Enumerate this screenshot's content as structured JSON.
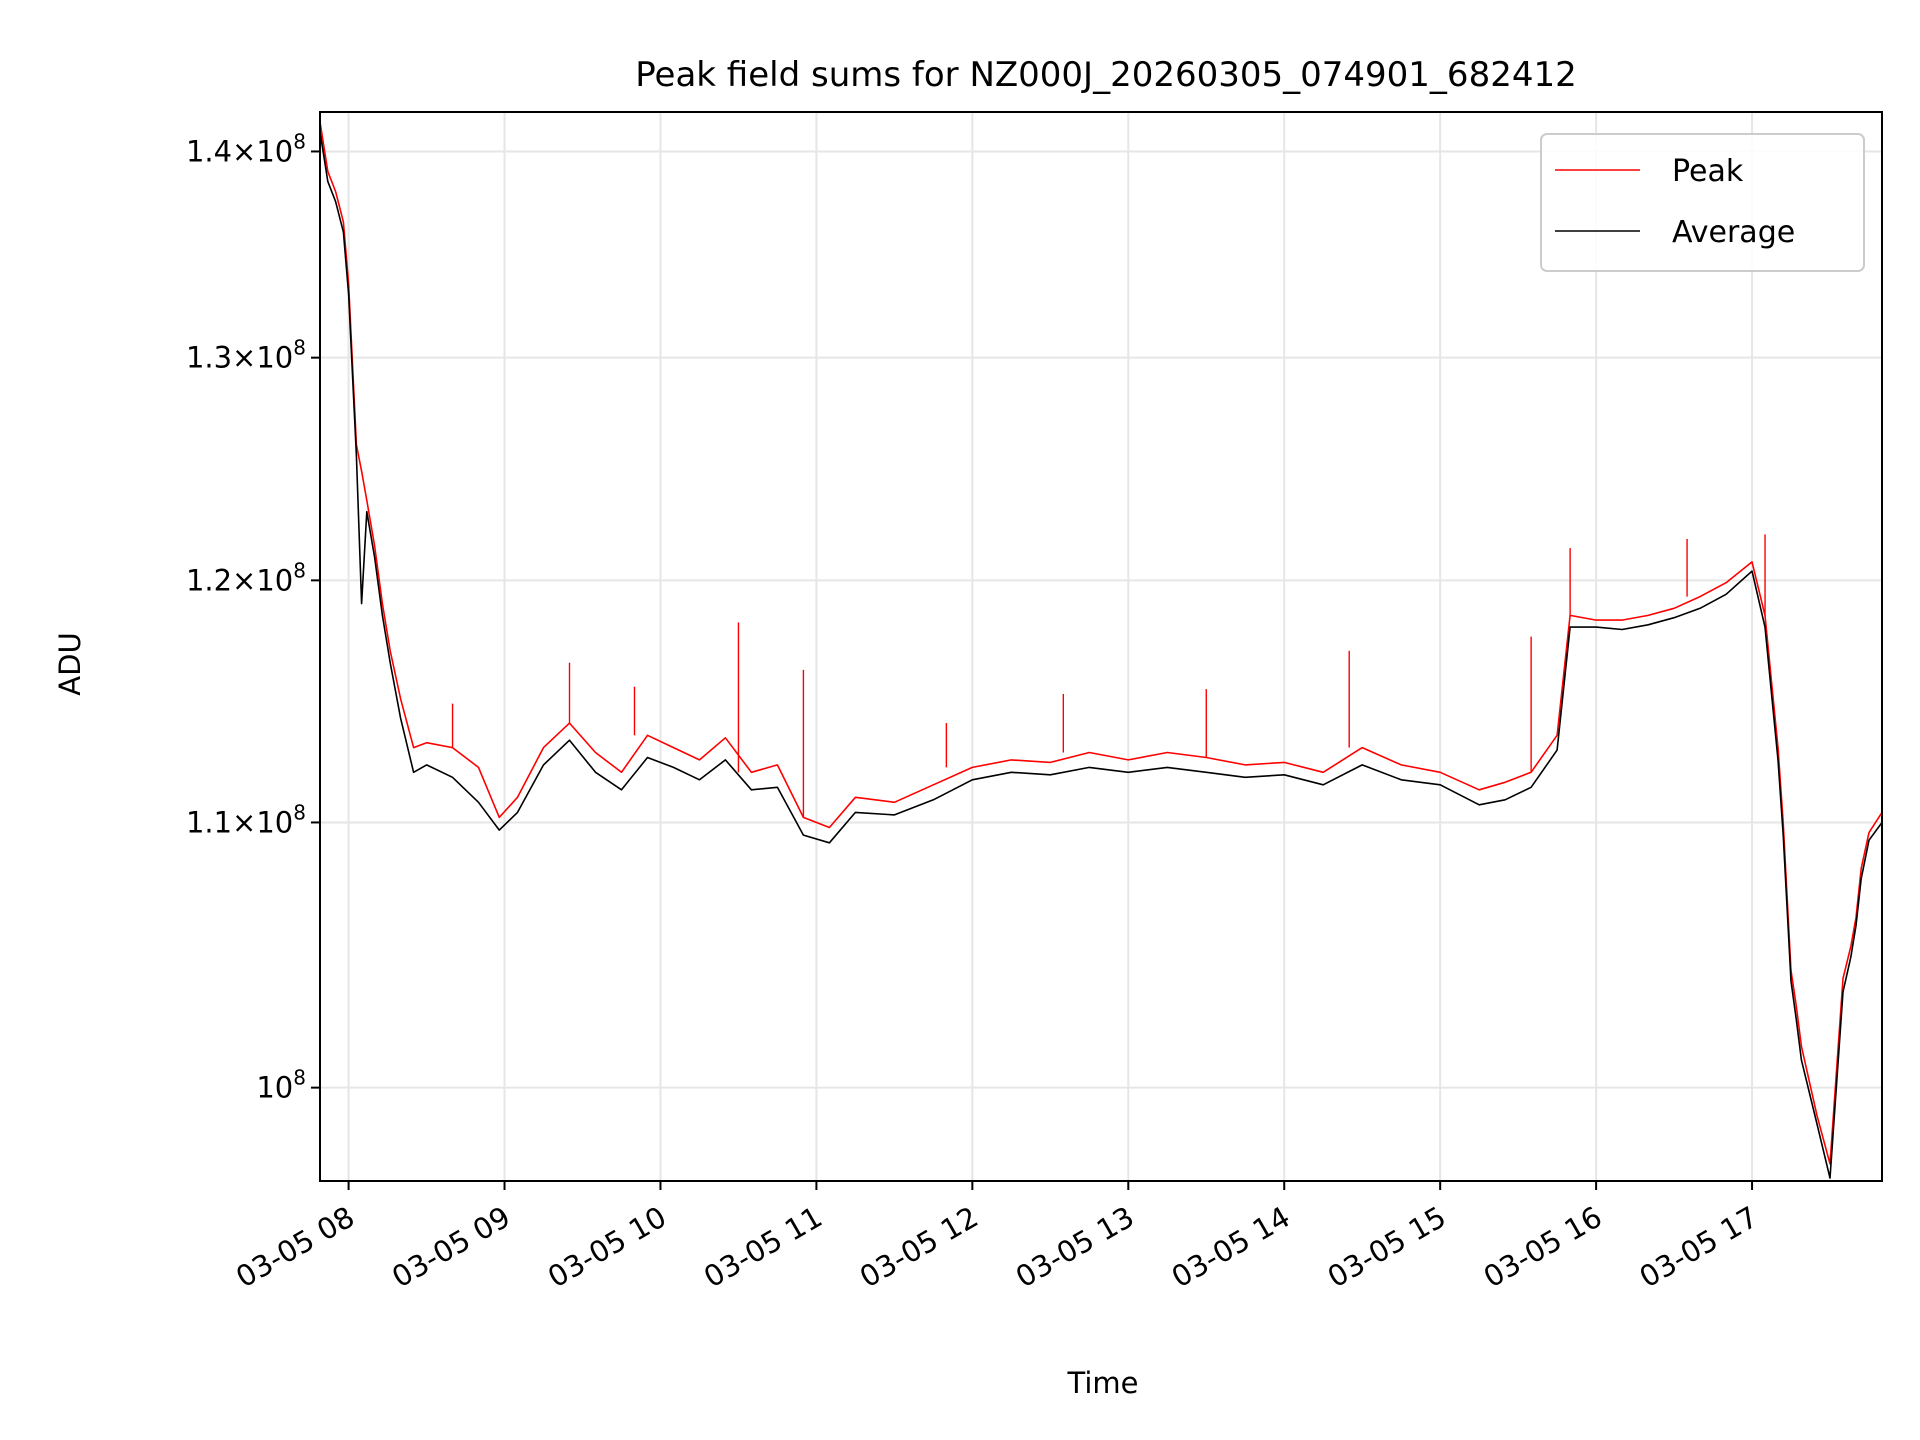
{
  "chart_data": {
    "type": "line",
    "title": "Peak field sums for NZ000J_20260305_074901_682412",
    "xlabel": "Time",
    "ylabel": "ADU",
    "y_scale": "log",
    "ylim": [
      96700000,
      142000000
    ],
    "xlim": [
      "03-05 07:49",
      "03-05 17:50"
    ],
    "grid": true,
    "legend_position": "top-right",
    "x_tick_labels": [
      "03-05 08",
      "03-05 09",
      "03-05 10",
      "03-05 11",
      "03-05 12",
      "03-05 13",
      "03-05 14",
      "03-05 15",
      "03-05 16",
      "03-05 17"
    ],
    "x_ticks": [
      "03-05 08:00",
      "03-05 09:00",
      "03-05 10:00",
      "03-05 11:00",
      "03-05 12:00",
      "03-05 13:00",
      "03-05 14:00",
      "03-05 15:00",
      "03-05 16:00",
      "03-05 17:00"
    ],
    "y_ticks": [
      {
        "value": 100000000,
        "mantissa": "",
        "exponent": "8"
      },
      {
        "value": 110000000,
        "mantissa": "1.1",
        "exponent": "8"
      },
      {
        "value": 120000000,
        "mantissa": "1.2",
        "exponent": "8"
      },
      {
        "value": 130000000,
        "mantissa": "1.3",
        "exponent": "8"
      },
      {
        "value": 140000000,
        "mantissa": "1.4",
        "exponent": "8"
      }
    ],
    "series": [
      {
        "name": "Peak",
        "color": "#ff0000",
        "x": [
          "03-05 07:49",
          "03-05 07:52",
          "03-05 07:55",
          "03-05 07:58",
          "03-05 08:00",
          "03-05 08:03",
          "03-05 08:05",
          "03-05 08:07",
          "03-05 08:10",
          "03-05 08:13",
          "03-05 08:16",
          "03-05 08:20",
          "03-05 08:25",
          "03-05 08:30",
          "03-05 08:40",
          "03-05 08:50",
          "03-05 08:58",
          "03-05 09:05",
          "03-05 09:15",
          "03-05 09:25",
          "03-05 09:35",
          "03-05 09:45",
          "03-05 09:55",
          "03-05 10:05",
          "03-05 10:15",
          "03-05 10:25",
          "03-05 10:35",
          "03-05 10:45",
          "03-05 10:55",
          "03-05 11:05",
          "03-05 11:15",
          "03-05 11:30",
          "03-05 11:45",
          "03-05 12:00",
          "03-05 12:15",
          "03-05 12:30",
          "03-05 12:45",
          "03-05 13:00",
          "03-05 13:15",
          "03-05 13:30",
          "03-05 13:45",
          "03-05 14:00",
          "03-05 14:15",
          "03-05 14:30",
          "03-05 14:45",
          "03-05 15:00",
          "03-05 15:15",
          "03-05 15:25",
          "03-05 15:35",
          "03-05 15:45",
          "03-05 15:50",
          "03-05 16:00",
          "03-05 16:10",
          "03-05 16:20",
          "03-05 16:30",
          "03-05 16:40",
          "03-05 16:50",
          "03-05 17:00",
          "03-05 17:05",
          "03-05 17:10",
          "03-05 17:12",
          "03-05 17:15",
          "03-05 17:17",
          "03-05 17:19",
          "03-05 17:25",
          "03-05 17:30",
          "03-05 17:35",
          "03-05 17:38",
          "03-05 17:40",
          "03-05 17:42",
          "03-05 17:45",
          "03-05 17:50"
        ],
        "y": [
          141500000,
          139000000,
          138000000,
          136500000,
          133500000,
          126000000,
          124800000,
          123500000,
          121500000,
          119000000,
          117000000,
          115000000,
          113000000,
          113200000,
          113000000,
          112200000,
          110200000,
          111000000,
          113000000,
          114000000,
          112800000,
          112000000,
          113500000,
          113000000,
          112500000,
          113400000,
          112000000,
          112300000,
          110200000,
          109800000,
          111000000,
          110800000,
          111500000,
          112200000,
          112500000,
          112400000,
          112800000,
          112500000,
          112800000,
          112600000,
          112300000,
          112400000,
          112000000,
          113000000,
          112300000,
          112000000,
          111300000,
          111600000,
          112000000,
          113500000,
          118500000,
          118300000,
          118300000,
          118500000,
          118800000,
          119300000,
          119900000,
          120800000,
          118500000,
          113000000,
          110000000,
          104300000,
          103000000,
          101500000,
          99000000,
          97300000,
          104000000,
          105200000,
          106300000,
          108200000,
          109600000,
          110400000
        ],
        "spikes": [
          {
            "x": "03-05 08:40",
            "y": 114800000
          },
          {
            "x": "03-05 09:25",
            "y": 116500000
          },
          {
            "x": "03-05 09:50",
            "y": 115500000
          },
          {
            "x": "03-05 10:30",
            "y": 118200000
          },
          {
            "x": "03-05 10:55",
            "y": 116200000
          },
          {
            "x": "03-05 11:50",
            "y": 114000000
          },
          {
            "x": "03-05 12:35",
            "y": 115200000
          },
          {
            "x": "03-05 13:30",
            "y": 115400000
          },
          {
            "x": "03-05 14:25",
            "y": 117000000
          },
          {
            "x": "03-05 15:35",
            "y": 117600000
          },
          {
            "x": "03-05 15:50",
            "y": 121400000
          },
          {
            "x": "03-05 16:35",
            "y": 121800000
          },
          {
            "x": "03-05 17:05",
            "y": 122000000
          }
        ]
      },
      {
        "name": "Average",
        "color": "#000000",
        "x": [
          "03-05 07:49",
          "03-05 07:52",
          "03-05 07:55",
          "03-05 07:58",
          "03-05 08:00",
          "03-05 08:03",
          "03-05 08:05",
          "03-05 08:07",
          "03-05 08:10",
          "03-05 08:13",
          "03-05 08:16",
          "03-05 08:20",
          "03-05 08:25",
          "03-05 08:30",
          "03-05 08:40",
          "03-05 08:50",
          "03-05 08:58",
          "03-05 09:05",
          "03-05 09:15",
          "03-05 09:25",
          "03-05 09:35",
          "03-05 09:45",
          "03-05 09:55",
          "03-05 10:05",
          "03-05 10:15",
          "03-05 10:25",
          "03-05 10:35",
          "03-05 10:45",
          "03-05 10:55",
          "03-05 11:05",
          "03-05 11:15",
          "03-05 11:30",
          "03-05 11:45",
          "03-05 12:00",
          "03-05 12:15",
          "03-05 12:30",
          "03-05 12:45",
          "03-05 13:00",
          "03-05 13:15",
          "03-05 13:30",
          "03-05 13:45",
          "03-05 14:00",
          "03-05 14:15",
          "03-05 14:30",
          "03-05 14:45",
          "03-05 15:00",
          "03-05 15:15",
          "03-05 15:25",
          "03-05 15:35",
          "03-05 15:45",
          "03-05 15:50",
          "03-05 16:00",
          "03-05 16:10",
          "03-05 16:20",
          "03-05 16:30",
          "03-05 16:40",
          "03-05 16:50",
          "03-05 17:00",
          "03-05 17:05",
          "03-05 17:10",
          "03-05 17:12",
          "03-05 17:15",
          "03-05 17:17",
          "03-05 17:19",
          "03-05 17:25",
          "03-05 17:30",
          "03-05 17:35",
          "03-05 17:38",
          "03-05 17:40",
          "03-05 17:42",
          "03-05 17:45",
          "03-05 17:50"
        ],
        "y": [
          141000000,
          138500000,
          137500000,
          136000000,
          133000000,
          125500000,
          119000000,
          123000000,
          121000000,
          118500000,
          116500000,
          114200000,
          112000000,
          112300000,
          111800000,
          110800000,
          109700000,
          110400000,
          112300000,
          113300000,
          112000000,
          111300000,
          112600000,
          112200000,
          111700000,
          112500000,
          111300000,
          111400000,
          109500000,
          109200000,
          110400000,
          110300000,
          110900000,
          111700000,
          112000000,
          111900000,
          112200000,
          112000000,
          112200000,
          112000000,
          111800000,
          111900000,
          111500000,
          112300000,
          111700000,
          111500000,
          110700000,
          110900000,
          111400000,
          112900000,
          118000000,
          118000000,
          117900000,
          118100000,
          118400000,
          118800000,
          119400000,
          120400000,
          118000000,
          112500000,
          109500000,
          103900000,
          102500000,
          101000000,
          98700000,
          96800000,
          103500000,
          104800000,
          106000000,
          107800000,
          109300000,
          110000000
        ]
      }
    ]
  }
}
